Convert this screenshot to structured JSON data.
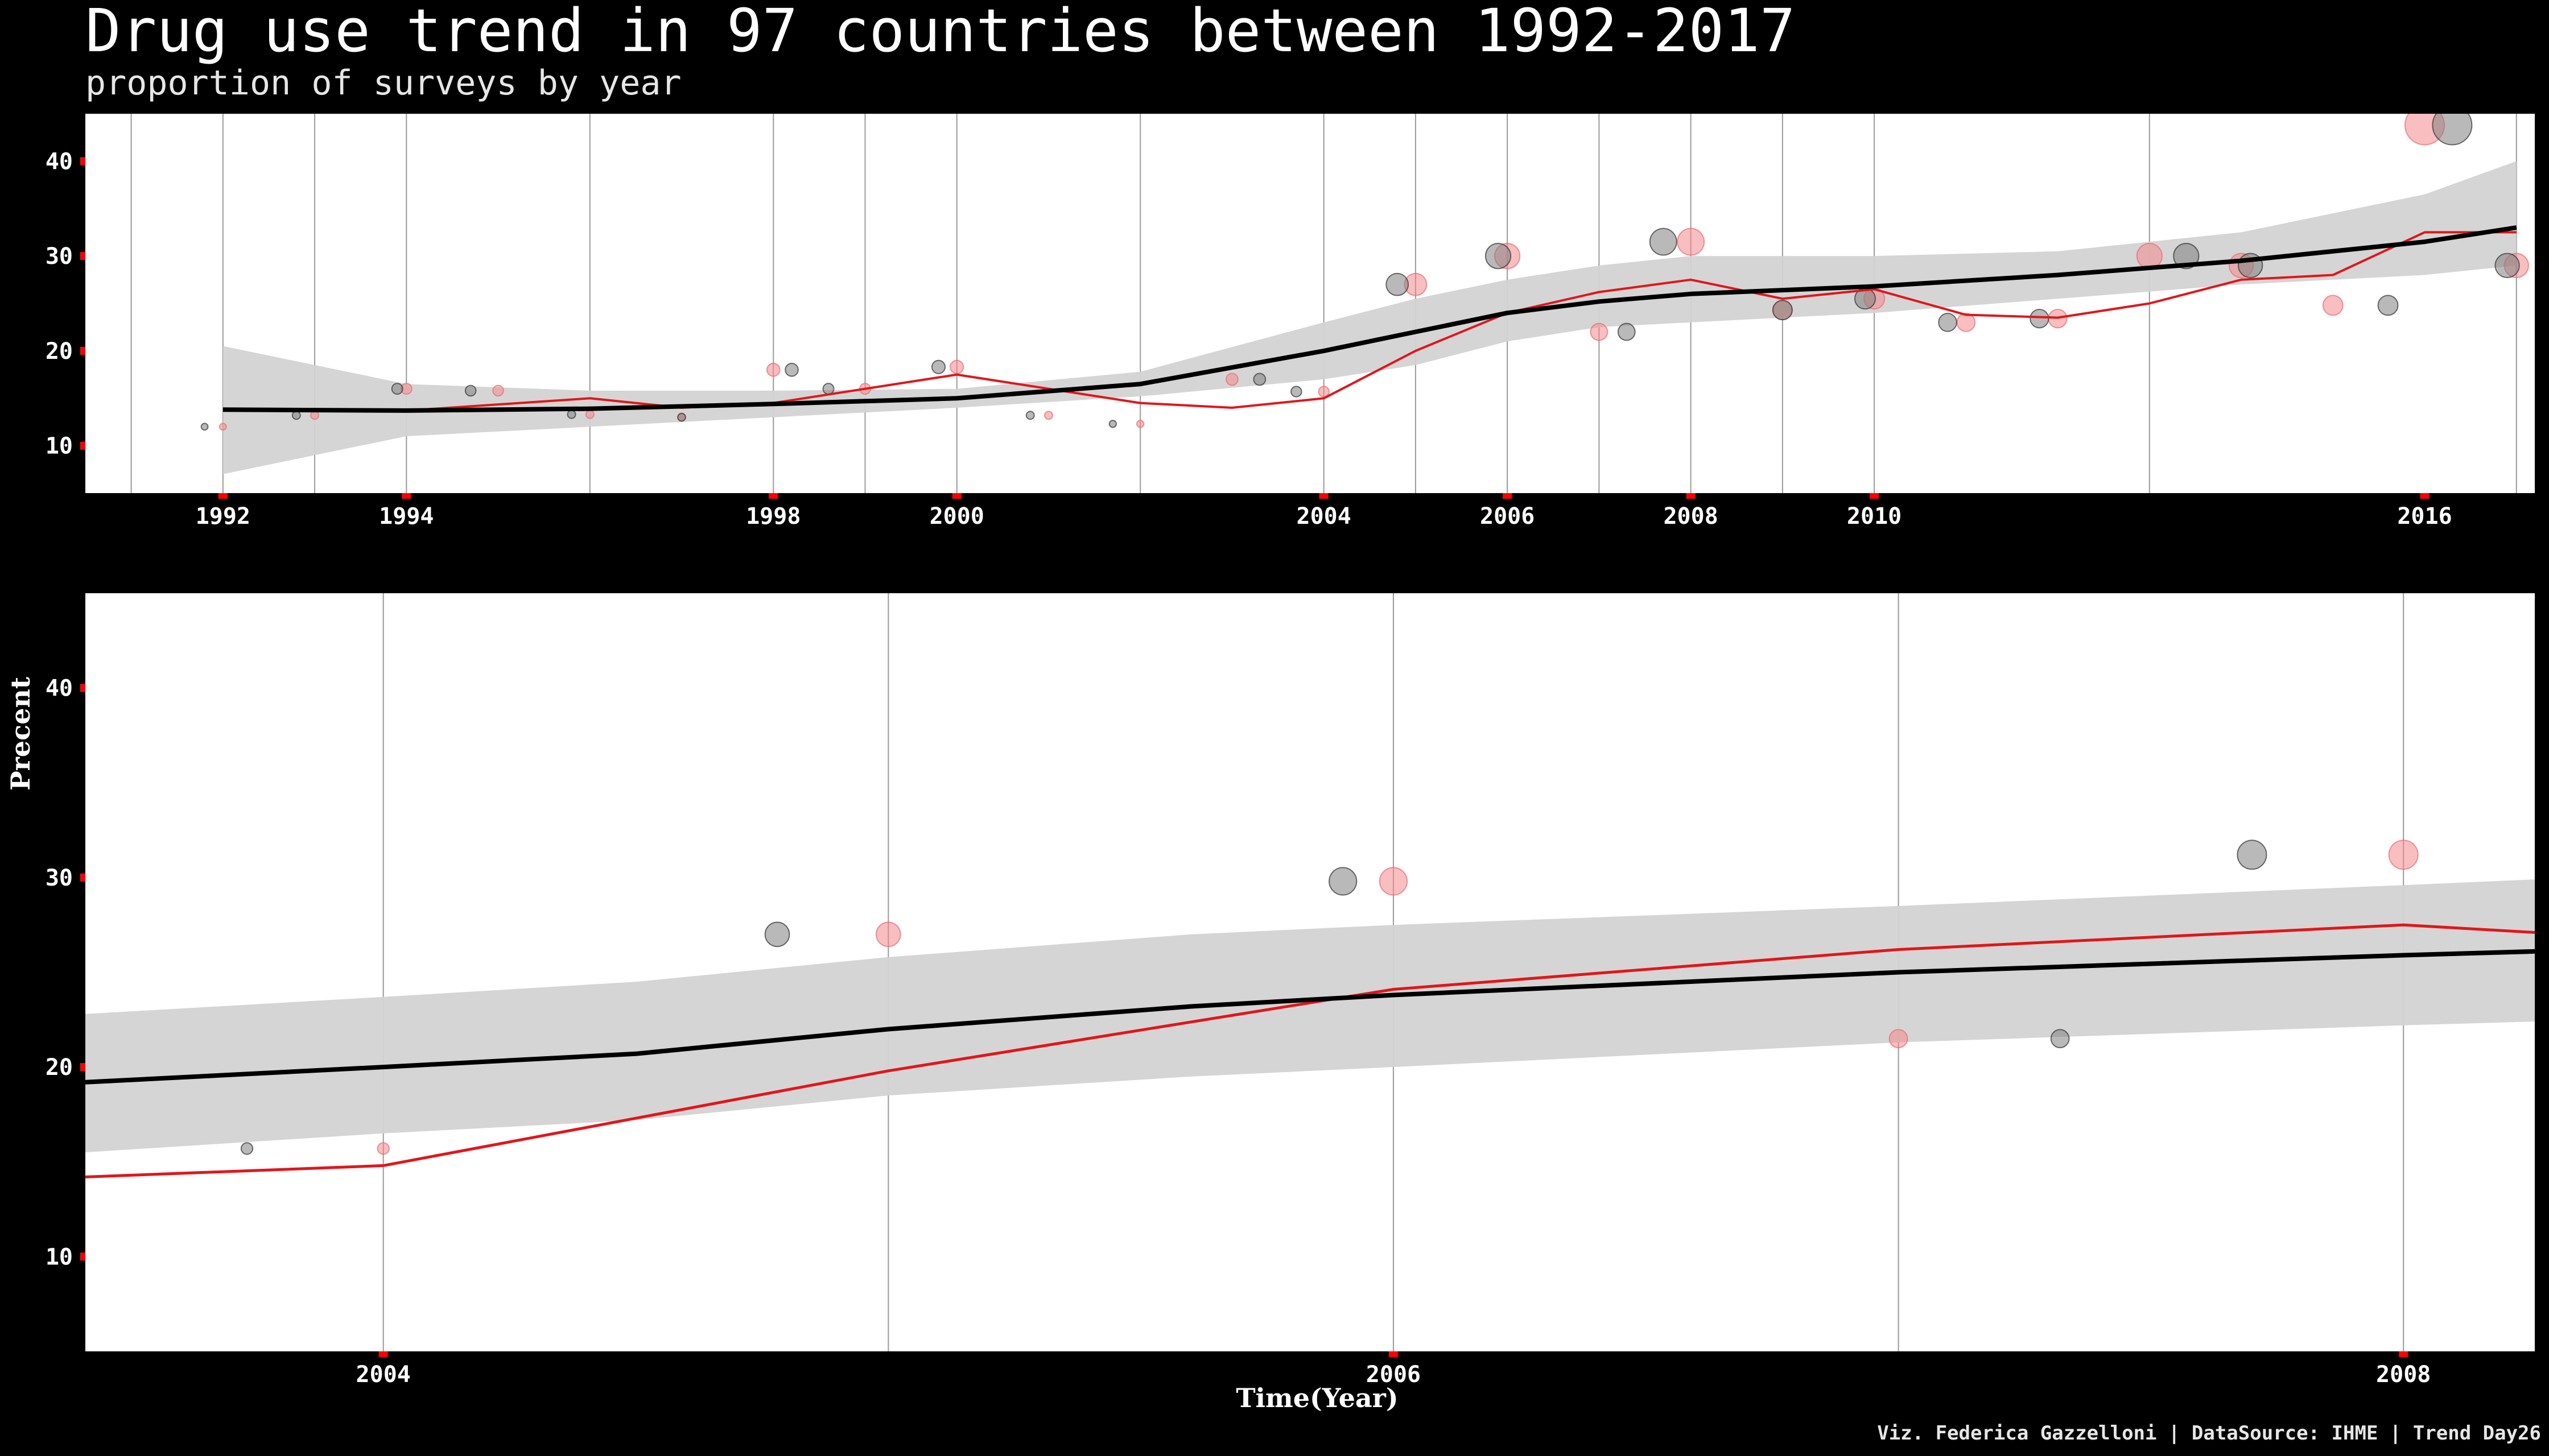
{
  "title": "Drug use trend in 97 countries between 1992-2017",
  "subtitle": "proportion of surveys by year",
  "caption": "Viz. Federica Gazzelloni | DataSource: IHME | Trend Day26",
  "colors": {
    "background": "#000000",
    "panel": "#ffffff",
    "series_a": "#f4898a",
    "series_b": "#808080",
    "trend_line": "#000000",
    "loess_line": "#e0161b",
    "ribbon": "#d3d3d3",
    "vertical_grid": "#9a9a9a",
    "tick_mark": "#ff0000"
  },
  "chart_data": [
    {
      "type": "scatter",
      "panel": "overview",
      "xlim": [
        1990.5,
        2017.2
      ],
      "ylim": [
        5,
        45
      ],
      "y_ticks": [
        10,
        20,
        30,
        40
      ],
      "x_ticks": [
        1992,
        1994,
        1998,
        2000,
        2004,
        2006,
        2008,
        2010,
        2016
      ],
      "vertical_grid_x": [
        1991,
        1992,
        1993,
        1994,
        1996,
        1998,
        1999,
        2000,
        2002,
        2004,
        2005,
        2006,
        2007,
        2008,
        2009,
        2010,
        2013,
        2017
      ],
      "xlabel": "",
      "ylabel": "",
      "series": [
        {
          "x": [
            1992.0,
            1993.0,
            1994.0,
            1995.0,
            1996.0,
            1997.0,
            1998.0,
            1999.0,
            2000.0,
            2001.0,
            2002.0,
            2003.0,
            2004.0,
            2005.0,
            2006.0,
            2007.0,
            2008.0,
            2009.0,
            2010.0,
            2011.0,
            2012.0,
            2013.0,
            2014.0,
            2015.0,
            2016.0,
            2017.0
          ],
          "values": [
            12,
            13.2,
            16,
            15.8,
            13.3,
            13,
            18,
            16,
            18.3,
            13.2,
            12.3,
            17,
            15.7,
            27,
            30,
            22,
            31.5,
            24.3,
            25.5,
            23,
            23.4,
            30,
            29,
            24.8,
            43.8,
            29
          ]
        },
        {
          "x": [
            1991.8,
            1992.8,
            1993.9,
            1994.7,
            1995.8,
            1997.0,
            1998.2,
            1998.6,
            1999.8,
            2000.8,
            2001.7,
            2003.3,
            2003.7,
            2004.8,
            2005.9,
            2007.3,
            2007.7,
            2009.0,
            2009.9,
            2010.8,
            2011.8,
            2013.4,
            2014.1,
            2015.6,
            2016.3,
            2016.9
          ],
          "values": [
            12,
            13.2,
            16,
            15.8,
            13.3,
            13,
            18,
            16,
            18.3,
            13.2,
            12.3,
            17,
            15.7,
            27,
            30,
            22,
            31.5,
            24.3,
            25.5,
            23,
            23.4,
            30,
            29,
            24.8,
            43.8,
            29
          ]
        }
      ],
      "loess_line": {
        "x": [
          1992,
          1994,
          1996,
          1997,
          1998,
          2000,
          2002,
          2003,
          2004,
          2005,
          2006,
          2007,
          2008,
          2009,
          2010,
          2011,
          2012,
          2013,
          2014,
          2015,
          2016,
          2017
        ],
        "values": [
          13.8,
          13.7,
          15,
          14,
          14.5,
          17.5,
          14.5,
          14,
          15,
          20,
          24,
          26.2,
          27.5,
          25.5,
          26.5,
          23.8,
          23.5,
          25,
          27.5,
          28,
          32.5,
          32.5
        ]
      },
      "trend_line": {
        "x": [
          1992,
          1994,
          1996,
          1998,
          2000,
          2002,
          2004,
          2005,
          2006,
          2007,
          2008,
          2010,
          2012,
          2014,
          2016,
          2017
        ],
        "values": [
          13.8,
          13.7,
          13.9,
          14.4,
          15,
          16.5,
          20,
          22,
          24,
          25.2,
          26,
          26.8,
          28,
          29.5,
          31.5,
          33
        ]
      },
      "ribbon": {
        "x": [
          1992,
          1994,
          1996,
          1998,
          2000,
          2002,
          2004,
          2005,
          2006,
          2007,
          2008,
          2010,
          2012,
          2014,
          2016,
          2017
        ],
        "upper": [
          20.5,
          16.5,
          15.8,
          15.8,
          16,
          17.8,
          23,
          25.5,
          27.5,
          29,
          30,
          30,
          30.5,
          32.5,
          36.5,
          40
        ],
        "lower": [
          7,
          11,
          12,
          13,
          14,
          15.2,
          17,
          18.5,
          21,
          22.5,
          23,
          24,
          25.5,
          27,
          28,
          29
        ]
      }
    },
    {
      "type": "scatter",
      "panel": "zoom",
      "xlim": [
        2003.41,
        2008.26
      ],
      "ylim": [
        5,
        45
      ],
      "y_ticks": [
        10,
        20,
        30,
        40
      ],
      "x_ticks": [
        2004,
        2006,
        2008
      ],
      "vertical_grid_x": [
        2004,
        2005,
        2006,
        2007,
        2008
      ],
      "xlabel": "Time(Year)",
      "ylabel": "Precent",
      "series": [
        {
          "x": [
            2004.0,
            2005.0,
            2006.0,
            2007.0,
            2008.0
          ],
          "values": [
            15.7,
            27,
            29.8,
            21.5,
            31.2
          ]
        },
        {
          "x": [
            2003.73,
            2004.78,
            2005.9,
            2007.32,
            2007.7
          ],
          "values": [
            15.7,
            27,
            29.8,
            21.5,
            31.2
          ]
        }
      ],
      "loess_line": {
        "x": [
          2003.41,
          2004.0,
          2005.0,
          2006.0,
          2007.0,
          2008.0,
          2008.26
        ],
        "values": [
          14.2,
          14.8,
          19.8,
          24.1,
          26.2,
          27.5,
          27.1
        ]
      },
      "trend_line": {
        "x": [
          2003.41,
          2004.0,
          2004.5,
          2005.0,
          2005.6,
          2006.0,
          2007.0,
          2008.0,
          2008.26
        ],
        "values": [
          19.2,
          20,
          20.7,
          22,
          23.2,
          23.8,
          25,
          25.9,
          26.1
        ]
      },
      "ribbon": {
        "x": [
          2003.41,
          2004.0,
          2004.5,
          2005.0,
          2005.6,
          2006.0,
          2007.0,
          2008.0,
          2008.26
        ],
        "upper": [
          22.8,
          23.7,
          24.5,
          25.8,
          27,
          27.5,
          28.5,
          29.6,
          29.9
        ],
        "lower": [
          15.5,
          16.5,
          17.2,
          18.5,
          19.5,
          20,
          21.3,
          22.2,
          22.4
        ]
      }
    }
  ]
}
